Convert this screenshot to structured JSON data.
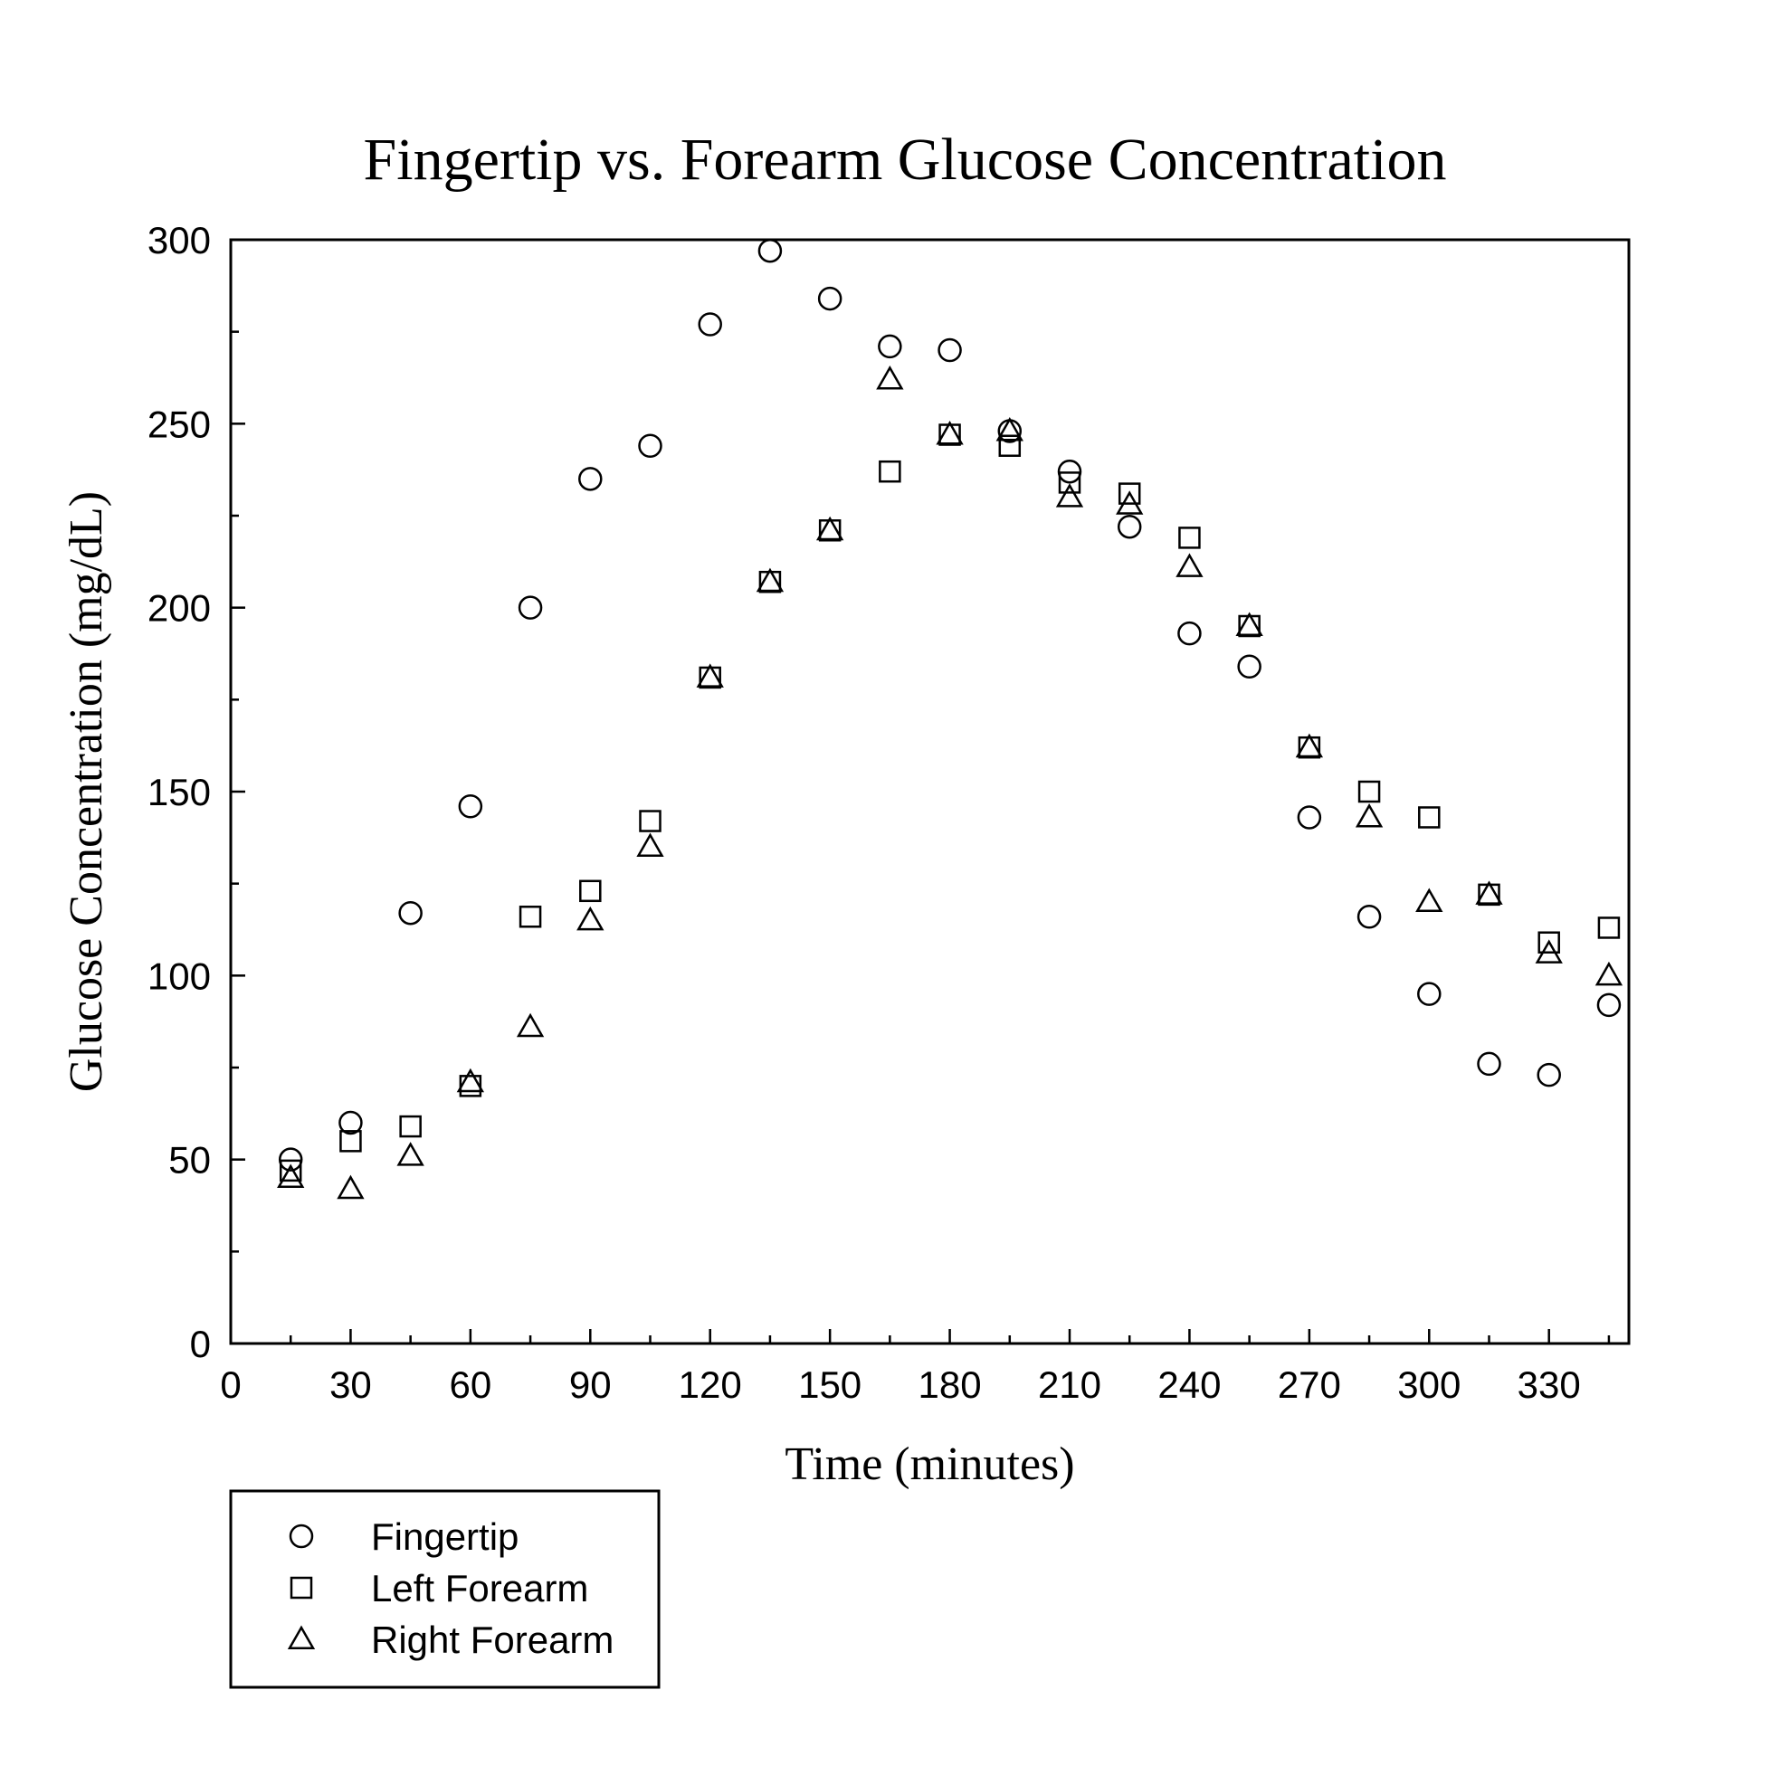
{
  "chart_data": {
    "type": "scatter",
    "title": "Fingertip vs. Forearm Glucose Concentration",
    "xlabel": "Time (minutes)",
    "ylabel": "Glucose Concentration (mg/dL)",
    "xlim": [
      0,
      350
    ],
    "ylim": [
      0,
      300
    ],
    "xticks": [
      "0",
      "30",
      "60",
      "90",
      "120",
      "150",
      "180",
      "210",
      "240",
      "270",
      "300",
      "330"
    ],
    "yticks": [
      "0",
      "50",
      "100",
      "150",
      "200",
      "250",
      "300"
    ],
    "grid": false,
    "legend_position": "bottom-left, below plot",
    "series": [
      {
        "name": "Fingertip",
        "marker": "circle",
        "x": [
          15,
          30,
          45,
          60,
          75,
          90,
          105,
          120,
          135,
          150,
          165,
          180,
          195,
          210,
          225,
          240,
          255,
          270,
          285,
          300,
          315,
          330,
          345
        ],
        "y": [
          50,
          60,
          117,
          146,
          200,
          235,
          244,
          277,
          297,
          284,
          271,
          270,
          248,
          237,
          222,
          193,
          184,
          143,
          116,
          95,
          76,
          73,
          92
        ]
      },
      {
        "name": "Left Forearm",
        "marker": "square",
        "x": [
          15,
          30,
          45,
          60,
          75,
          90,
          105,
          120,
          135,
          150,
          165,
          180,
          195,
          210,
          225,
          240,
          255,
          270,
          285,
          300,
          315,
          330,
          345
        ],
        "y": [
          47,
          55,
          59,
          70,
          116,
          123,
          142,
          181,
          207,
          221,
          237,
          247,
          244,
          234,
          231,
          219,
          195,
          162,
          150,
          143,
          122,
          109,
          113
        ]
      },
      {
        "name": "Right Forearm",
        "marker": "triangle",
        "x": [
          15,
          30,
          45,
          60,
          75,
          90,
          105,
          120,
          135,
          150,
          165,
          180,
          195,
          210,
          225,
          240,
          255,
          270,
          285,
          300,
          315,
          330,
          345
        ],
        "y": [
          45,
          42,
          51,
          71,
          86,
          115,
          135,
          181,
          207,
          221,
          262,
          247,
          248,
          230,
          228,
          211,
          195,
          162,
          143,
          120,
          122,
          106,
          100
        ]
      }
    ]
  }
}
